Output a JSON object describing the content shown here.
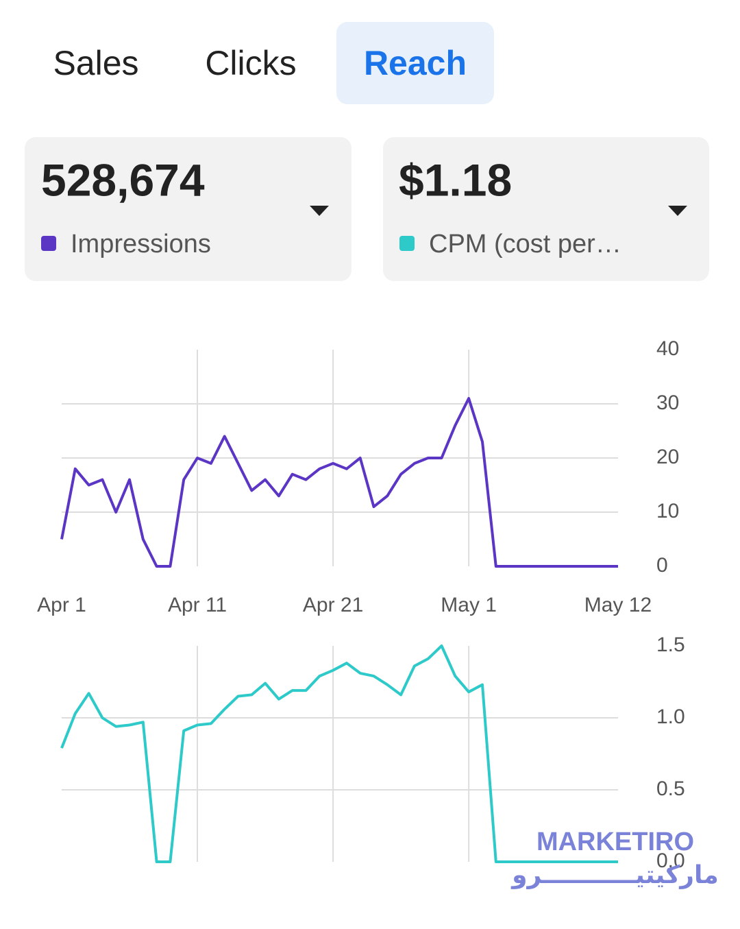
{
  "tabs": [
    {
      "label": "Sales",
      "selected": false
    },
    {
      "label": "Clicks",
      "selected": false
    },
    {
      "label": "Reach",
      "selected": true
    }
  ],
  "metrics": [
    {
      "value": "528,674"
    },
    {
      "value": "$1.18"
    }
  ],
  "logo": {
    "text": "MARKETIRO",
    "text_arabic": "ماركيتيـــــــــــرو"
  },
  "chart_data": [
    {
      "type": "line",
      "x": [
        "Apr 1",
        "Apr 2",
        "Apr 3",
        "Apr 4",
        "Apr 5",
        "Apr 6",
        "Apr 7",
        "Apr 8",
        "Apr 9",
        "Apr 10",
        "Apr 11",
        "Apr 12",
        "Apr 13",
        "Apr 14",
        "Apr 15",
        "Apr 16",
        "Apr 17",
        "Apr 18",
        "Apr 19",
        "Apr 20",
        "Apr 21",
        "Apr 22",
        "Apr 23",
        "Apr 24",
        "Apr 25",
        "Apr 26",
        "Apr 27",
        "Apr 28",
        "Apr 29",
        "Apr 30",
        "May 1",
        "May 2",
        "May 3",
        "May 4",
        "May 5",
        "May 6",
        "May 7",
        "May 8",
        "May 9",
        "May 10",
        "May 11",
        "May 12"
      ],
      "xticks": [
        "Apr 1",
        "Apr 11",
        "Apr 21",
        "May 1",
        "May 12"
      ],
      "series": [
        {
          "name": "Impressions",
          "color": "#5b36c4",
          "values": [
            5,
            18,
            15,
            16,
            10,
            16,
            5,
            0,
            0,
            16,
            20,
            19,
            24,
            19,
            14,
            16,
            13,
            17,
            16,
            18,
            19,
            18,
            20,
            11,
            13,
            17,
            19,
            20,
            20,
            26,
            31,
            23,
            0,
            0,
            0,
            0,
            0,
            0,
            0,
            0,
            0,
            0
          ]
        }
      ],
      "ylim": [
        0,
        40
      ],
      "yticks": [
        0,
        10,
        20,
        30,
        40
      ],
      "grid": true
    },
    {
      "type": "line",
      "series": [
        {
          "name": "CPM (cost per…",
          "color": "#2ec9c9",
          "values": [
            0.79,
            1.03,
            1.17,
            1.0,
            0.94,
            0.95,
            0.97,
            0,
            0,
            0.91,
            0.95,
            0.96,
            1.06,
            1.15,
            1.16,
            1.24,
            1.13,
            1.19,
            1.19,
            1.29,
            1.33,
            1.38,
            1.31,
            1.29,
            1.23,
            1.16,
            1.36,
            1.41,
            1.5,
            1.29,
            1.18,
            1.23,
            0,
            0,
            0,
            0,
            0,
            0,
            0,
            0,
            0,
            0
          ]
        }
      ],
      "ylim": [
        0,
        1.5
      ],
      "yticks": [
        {
          "value": 0,
          "label": "0.0"
        },
        {
          "value": 0.5,
          "label": "0.5"
        },
        {
          "value": 1,
          "label": "1.0"
        },
        {
          "value": 1.5,
          "label": "1.5"
        }
      ],
      "grid": true
    }
  ]
}
